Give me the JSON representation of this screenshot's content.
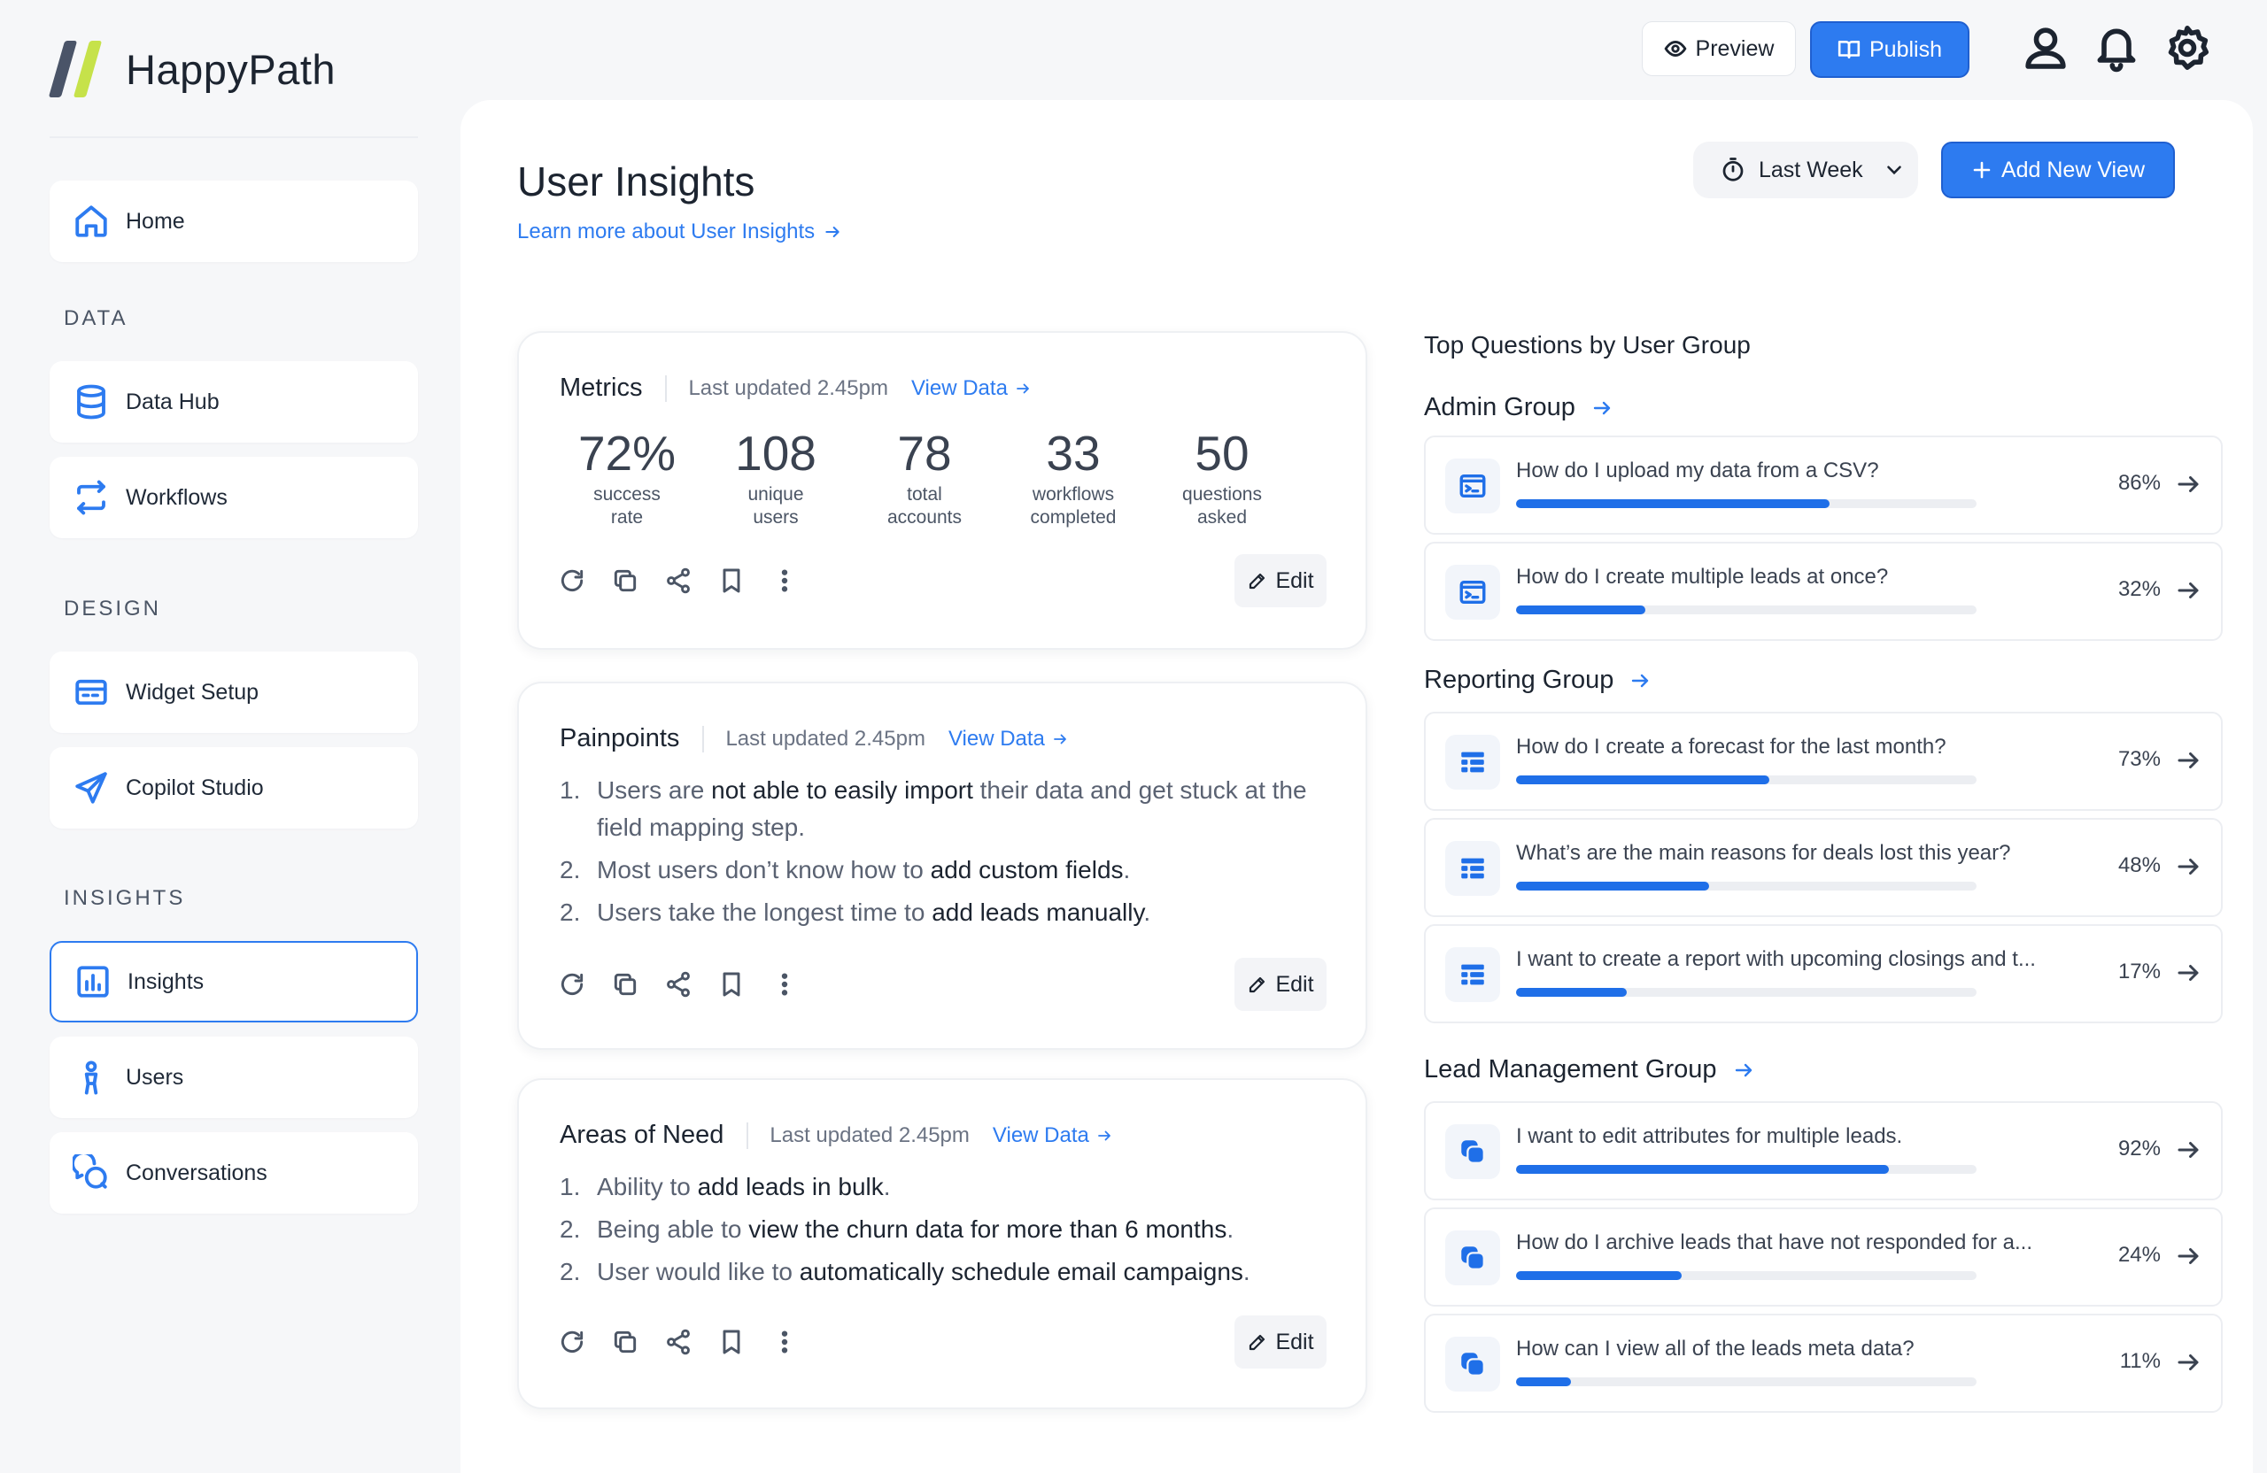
{
  "app": {
    "name": "HappyPath"
  },
  "topbar": {
    "preview_label": "Preview",
    "publish_label": "Publish"
  },
  "sidebar": {
    "home": "Home",
    "sections": [
      "DATA",
      "DESIGN",
      "INSIGHTS"
    ],
    "items": [
      {
        "label": "Data Hub",
        "icon": "database-icon"
      },
      {
        "label": "Workflows",
        "icon": "workflow-arrows-icon"
      },
      {
        "label": "Widget Setup",
        "icon": "widget-card-icon"
      },
      {
        "label": "Copilot Studio",
        "icon": "send-icon"
      },
      {
        "label": "Insights",
        "icon": "bar-chart-icon",
        "active": true
      },
      {
        "label": "Users",
        "icon": "user-figure-icon"
      },
      {
        "label": "Conversations",
        "icon": "chat-bubbles-icon"
      }
    ]
  },
  "page": {
    "title": "User Insights",
    "learn_more": "Learn more about User Insights",
    "range": "Last Week",
    "add_view": "Add New View"
  },
  "common": {
    "view_data": "View Data",
    "edit": "Edit",
    "updated": "Last updated 2.45pm"
  },
  "metrics_card": {
    "title": "Metrics",
    "items": [
      {
        "value": "72%",
        "label1": "success",
        "label2": "rate"
      },
      {
        "value": "108",
        "label1": "unique",
        "label2": "users"
      },
      {
        "value": "78",
        "label1": "total",
        "label2": "accounts"
      },
      {
        "value": "33",
        "label1": "workflows",
        "label2": "completed"
      },
      {
        "value": "50",
        "label1": "questions",
        "label2": "asked"
      }
    ]
  },
  "painpoints_card": {
    "title": "Painpoints",
    "items": [
      {
        "num": "1.",
        "pre": "Users are ",
        "bold": "not able to easily import",
        "post": " their data and get stuck at the field mapping step."
      },
      {
        "num": "2.",
        "pre": "Most users don’t know how to ",
        "bold": "add custom fields",
        "post": "."
      },
      {
        "num": "2.",
        "pre": "Users take the longest time to ",
        "bold": "add leads manually",
        "post": "."
      }
    ]
  },
  "needs_card": {
    "title": "Areas of Need",
    "items": [
      {
        "num": "1.",
        "pre": "Ability to ",
        "bold": "add leads in bulk",
        "post": "."
      },
      {
        "num": "2.",
        "pre": "Being able to ",
        "bold": "view the churn data for more than 6 months",
        "post": "."
      },
      {
        "num": "2.",
        "pre": "User would like to ",
        "bold": "automatically schedule email campaigns",
        "post": "."
      }
    ]
  },
  "top_questions": {
    "title": "Top Questions by User Group",
    "groups": [
      {
        "name": "Admin Group",
        "questions": [
          {
            "text": "How do I upload my data from a CSV?",
            "pct": "86%",
            "fill": 0.68
          },
          {
            "text": "How do I create multiple leads at once?",
            "pct": "32%",
            "fill": 0.28
          }
        ]
      },
      {
        "name": "Reporting Group",
        "questions": [
          {
            "text": "How do I create a forecast for the last month?",
            "pct": "73%",
            "fill": 0.55
          },
          {
            "text": "What’s are the main reasons for deals lost this year?",
            "pct": "48%",
            "fill": 0.42
          },
          {
            "text": "I want to create a report with upcoming closings and t...",
            "pct": "17%",
            "fill": 0.24
          }
        ]
      },
      {
        "name": "Lead Management Group",
        "questions": [
          {
            "text": "I want to edit attributes for multiple leads.",
            "pct": "92%",
            "fill": 0.81
          },
          {
            "text": "How do I archive leads that have not responded for a...",
            "pct": "24%",
            "fill": 0.36
          },
          {
            "text": "How can I view all of the leads meta data?",
            "pct": "11%",
            "fill": 0.12
          }
        ]
      }
    ]
  },
  "colors": {
    "accent": "#2d7bf0",
    "logo_bar_1": "#4a5468",
    "logo_bar_2": "#c6e24a"
  }
}
